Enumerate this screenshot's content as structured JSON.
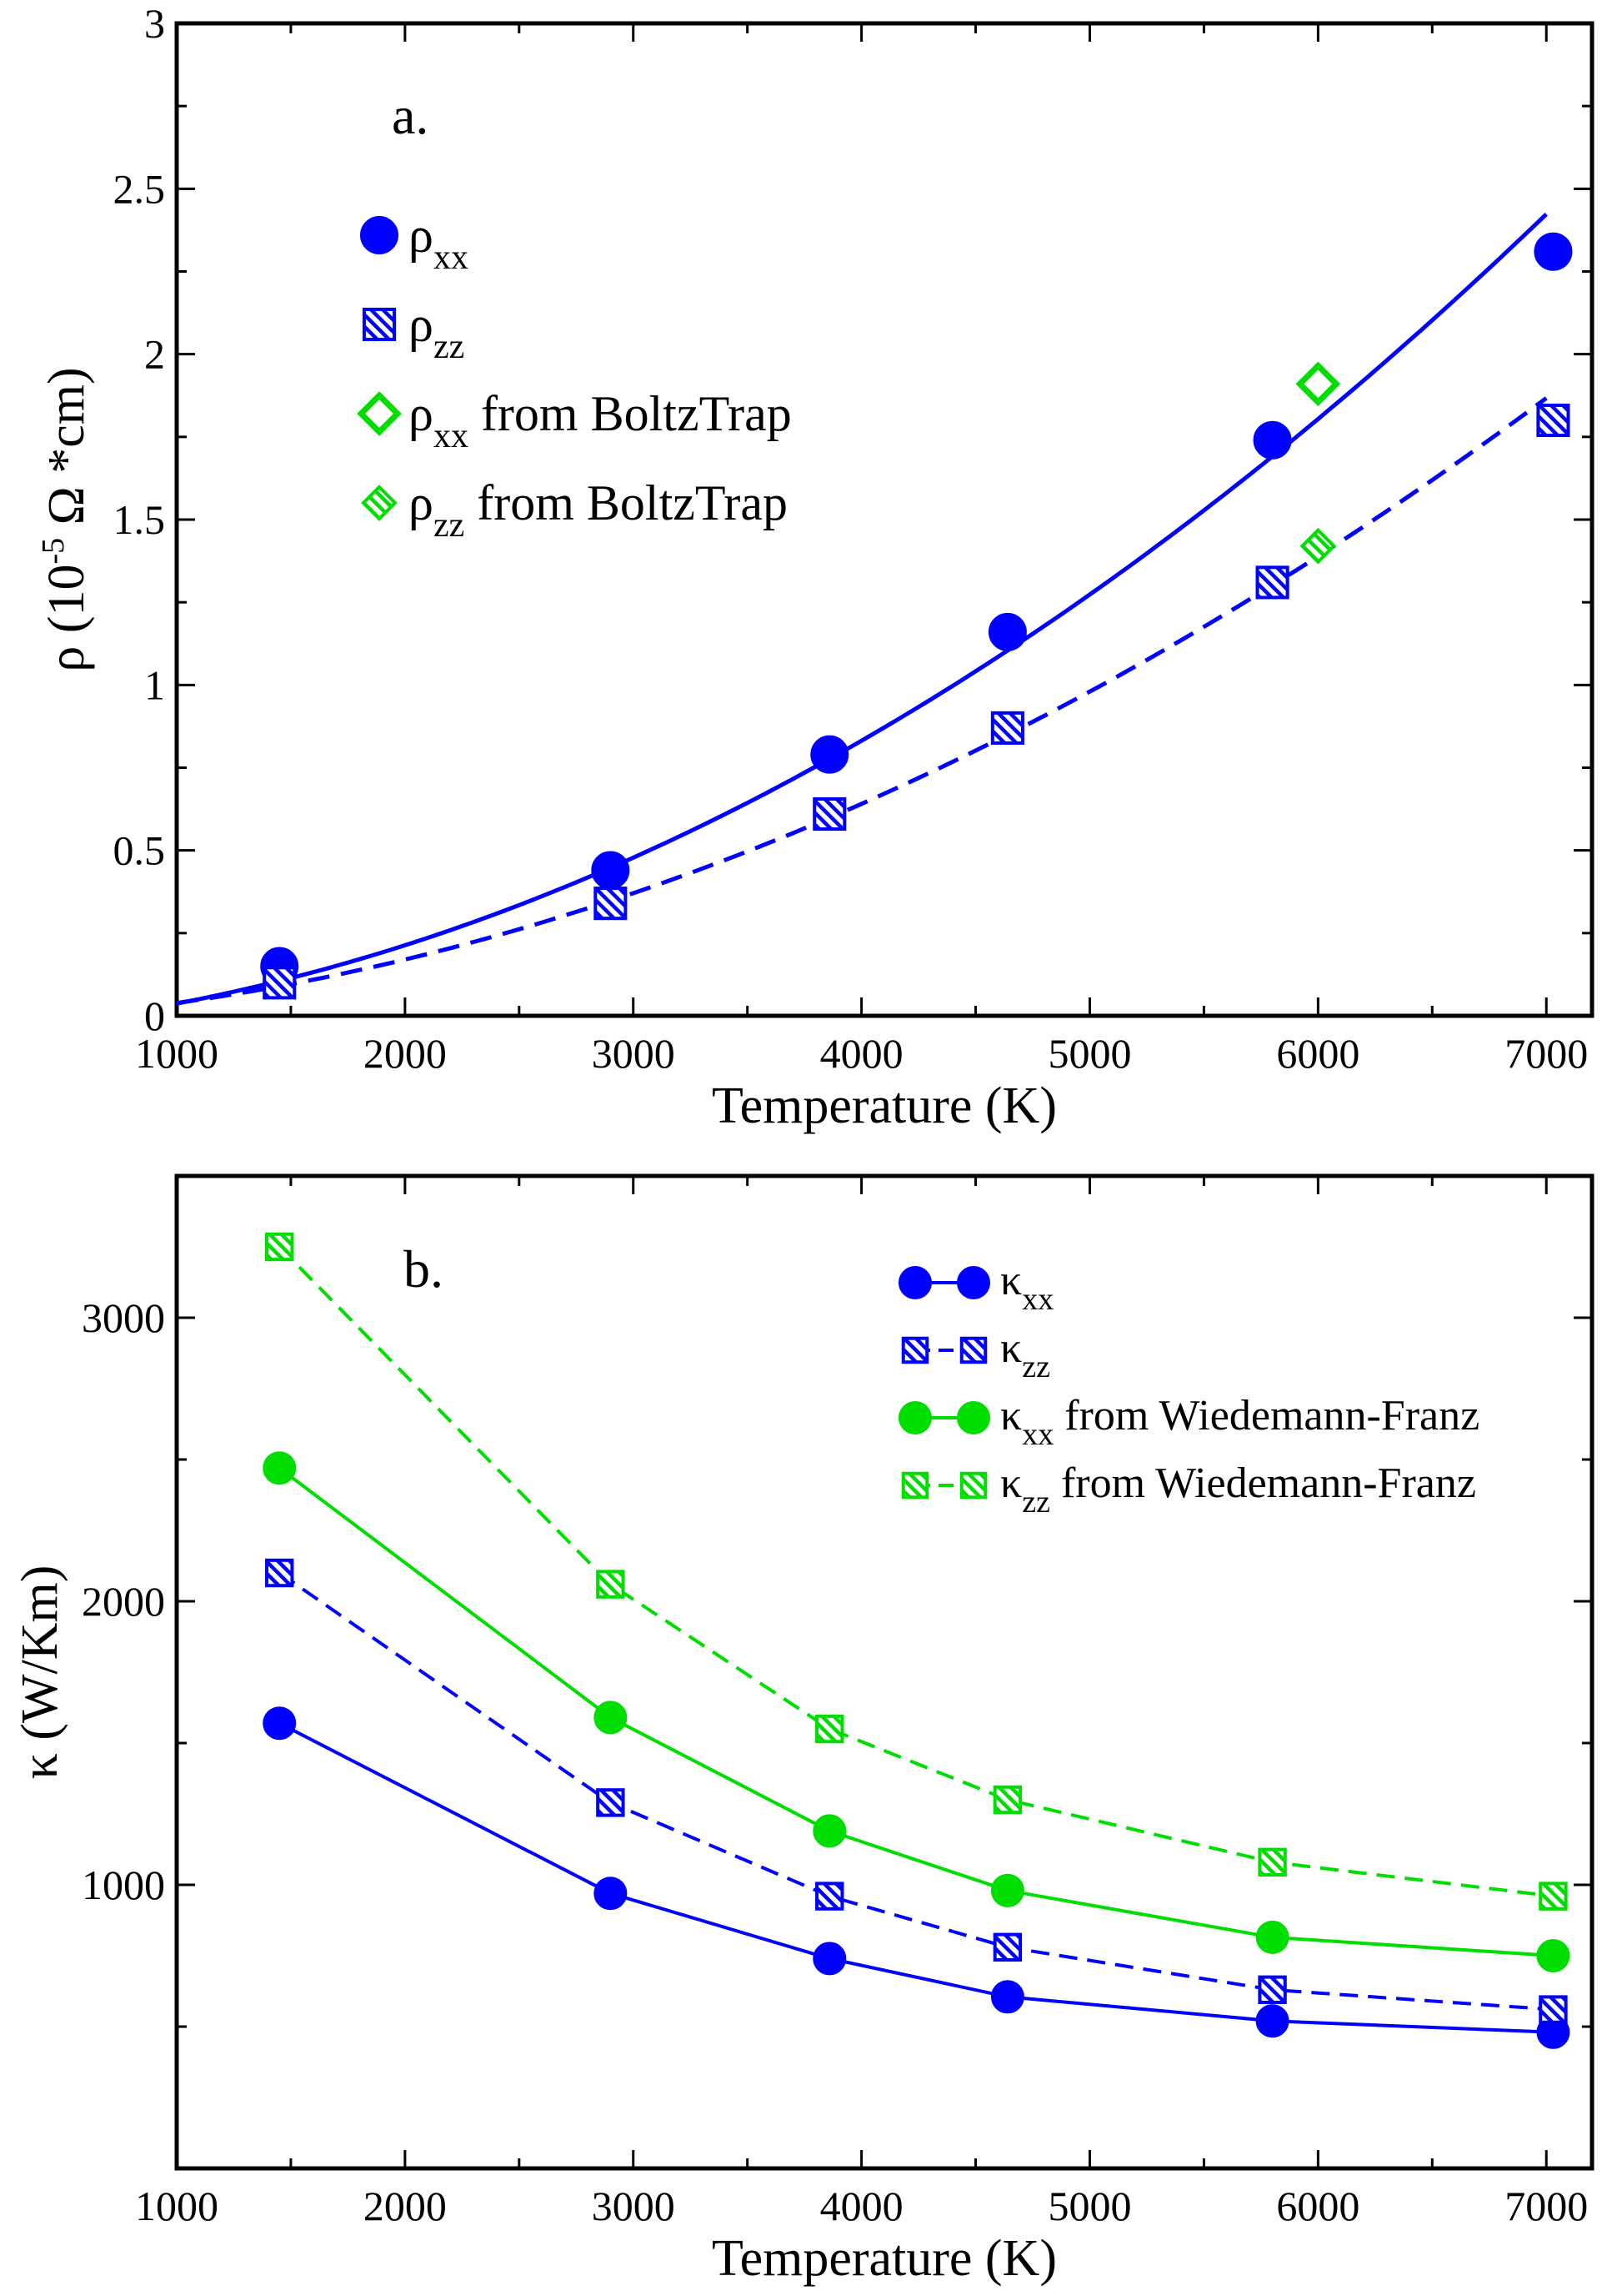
{
  "chart_data": [
    {
      "type": "scatter",
      "panel_label": "a.",
      "xlabel": "Temperature (K)",
      "ylabel_parts": [
        "ρ (10",
        "-5",
        " Ω *cm)"
      ],
      "xlim": [
        1000,
        7200
      ],
      "ylim": [
        0,
        3
      ],
      "xticks": [
        1000,
        2000,
        3000,
        4000,
        5000,
        6000,
        7000
      ],
      "xtick_labels": [
        "1000",
        "2000",
        "3000",
        "4000",
        "5000",
        "6000",
        "7000"
      ],
      "yticks": [
        0,
        0.5,
        1,
        1.5,
        2,
        2.5,
        3
      ],
      "ytick_labels": [
        "0",
        "0.5",
        "1",
        "1.5",
        "2",
        "2.5",
        "3"
      ],
      "series": [
        {
          "name": "ρxx",
          "symbol": "ρ",
          "sub": "xx",
          "suffix": "",
          "color": "#0000ff",
          "marker": "circle",
          "x": [
            1450,
            2900,
            3860,
            4640,
            5800,
            7030
          ],
          "y": [
            0.15,
            0.44,
            0.79,
            1.16,
            1.74,
            2.31
          ]
        },
        {
          "name": "ρzz",
          "symbol": "ρ",
          "sub": "zz",
          "suffix": "",
          "color": "#0000ff",
          "marker": "hatched-square",
          "x": [
            1450,
            2900,
            3860,
            4640,
            5800,
            7030
          ],
          "y": [
            0.1,
            0.34,
            0.61,
            0.87,
            1.31,
            1.8
          ]
        },
        {
          "name": "ρxx from BoltzTrap",
          "symbol": "ρ",
          "sub": "xx",
          "suffix": " from BoltzTrap",
          "color": "#00dd00",
          "marker": "open-diamond",
          "x": [
            6000
          ],
          "y": [
            1.91
          ]
        },
        {
          "name": "ρzz from BoltzTrap",
          "symbol": "ρ",
          "sub": "zz",
          "suffix": " from BoltzTrap",
          "color": "#00dd00",
          "marker": "hatched-diamond",
          "x": [
            6000
          ],
          "y": [
            1.42
          ]
        }
      ],
      "fits": [
        {
          "of": "ρxx",
          "style": "solid",
          "color": "#0000ff",
          "x_range": [
            1000,
            7000
          ],
          "coeffs": [
            -0.0505,
            4.33e-05,
            4.43e-08
          ]
        },
        {
          "of": "ρzz",
          "style": "dashed",
          "color": "#0000ff",
          "x_range": [
            1000,
            7000
          ],
          "coeffs": [
            -0.0229,
            2.71e-05,
            3.47e-08
          ]
        }
      ]
    },
    {
      "type": "line",
      "panel_label": "b.",
      "xlabel": "Temperature (K)",
      "ylabel": "κ (W/Km)",
      "xlim": [
        1000,
        7200
      ],
      "ylim": [
        0,
        3500
      ],
      "xticks": [
        1000,
        2000,
        3000,
        4000,
        5000,
        6000,
        7000
      ],
      "xtick_labels": [
        "1000",
        "2000",
        "3000",
        "4000",
        "5000",
        "6000",
        "7000"
      ],
      "yticks": [
        1000,
        2000,
        3000
      ],
      "ytick_labels": [
        "1000",
        "2000",
        "3000"
      ],
      "minor_yticks": [
        500,
        1500,
        2500
      ],
      "series": [
        {
          "name": "κxx",
          "symbol": "κ",
          "sub": "xx",
          "suffix": "",
          "color": "#0000ff",
          "marker": "circle",
          "line": "solid",
          "x": [
            1450,
            2900,
            3860,
            4640,
            5800,
            7030
          ],
          "y": [
            1570,
            970,
            740,
            605,
            520,
            480
          ]
        },
        {
          "name": "κzz",
          "symbol": "κ",
          "sub": "zz",
          "suffix": "",
          "color": "#0000ff",
          "marker": "hatched-square",
          "line": "dashed",
          "x": [
            1450,
            2900,
            3860,
            4640,
            5800,
            7030
          ],
          "y": [
            2100,
            1290,
            960,
            780,
            630,
            560
          ]
        },
        {
          "name": "κxx from Wiedemann-Franz",
          "symbol": "κ",
          "sub": "xx",
          "suffix": " from Wiedemann-Franz",
          "color": "#00dd00",
          "marker": "circle",
          "line": "solid",
          "x": [
            1450,
            2900,
            3860,
            4640,
            5800,
            7030
          ],
          "y": [
            2470,
            1590,
            1190,
            980,
            815,
            750
          ]
        },
        {
          "name": "κzz from Wiedemann-Franz",
          "symbol": "κ",
          "sub": "zz",
          "suffix": " from Wiedemann-Franz",
          "color": "#00dd00",
          "marker": "hatched-square",
          "line": "dashed",
          "x": [
            1450,
            2900,
            3860,
            4640,
            5800,
            7030
          ],
          "y": [
            3250,
            2060,
            1550,
            1300,
            1080,
            960
          ]
        }
      ]
    }
  ]
}
